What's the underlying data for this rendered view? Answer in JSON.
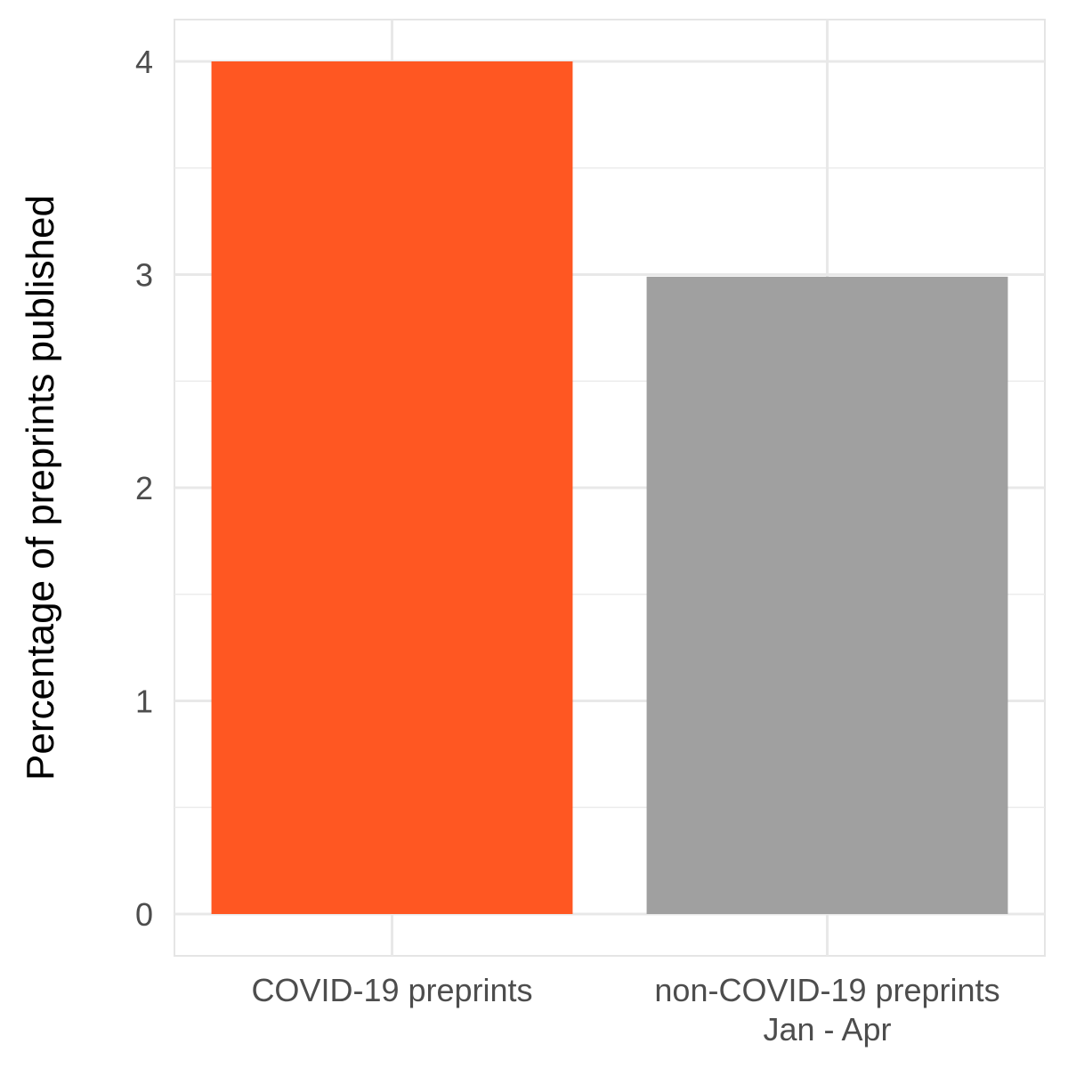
{
  "chart_data": {
    "type": "bar",
    "title": "",
    "xlabel": "",
    "ylabel": "Percentage of preprints published",
    "categories": [
      [
        "COVID-19 preprints"
      ],
      [
        "non-COVID-19 preprints",
        "Jan - Apr"
      ]
    ],
    "values": [
      4.0,
      2.99
    ],
    "colors": [
      "#ff5722",
      "#a0a0a0"
    ],
    "ylim": [
      -0.2,
      4.2
    ],
    "yticks": [
      0,
      1,
      2,
      3,
      4
    ],
    "grid": true,
    "legend": "none"
  }
}
